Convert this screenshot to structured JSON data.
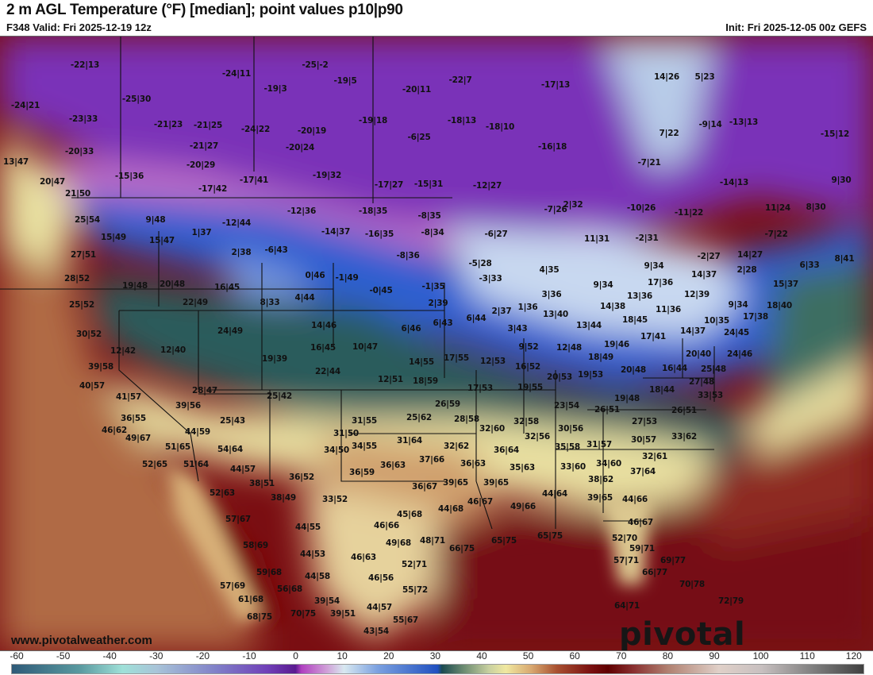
{
  "header": {
    "title": "2 m AGL Temperature (°F) [median]; point values p10|p90",
    "valid": "F348 Valid: Fri 2025-12-19 12z",
    "init": "Init: Fri 2025-12-05 00z GEFS"
  },
  "watermark": "www.pivotalweather.com",
  "logo": "pivotal weather",
  "colorbar": {
    "unit": "°F",
    "ticks": [
      "-60",
      "-50",
      "-40",
      "-30",
      "-20",
      "-10",
      "0",
      "10",
      "20",
      "30",
      "40",
      "50",
      "60",
      "70",
      "80",
      "90",
      "100",
      "110",
      "120"
    ]
  },
  "colors": {
    "cold_purple": "#7a2fb8",
    "blue": "#2f5fd0",
    "teal": "#2a5a5a",
    "pale_yellow": "#ece3a2",
    "tan": "#c08a5a",
    "dark_red": "#6e0a0a"
  },
  "points": [
    "-22|13",
    "-24|21",
    "-25|30",
    "-23|33",
    "-20|33",
    "13|47",
    "-15|36",
    "20|47",
    "21|50",
    "-24|11",
    "-19|3",
    "-21|23",
    "-21|25",
    "-24|22",
    "-21|27",
    "-20|29",
    "-17|42",
    "-17|41",
    "25|54",
    "9|48",
    "15|49",
    "15|47",
    "1|37",
    "-12|44",
    "-25|-2",
    "-19|5",
    "-20|11",
    "-22|7",
    "-17|13",
    "-20|19",
    "-20|24",
    "-19|18",
    "-6|25",
    "-18|13",
    "-18|10",
    "-16|18",
    "-19|32",
    "-17|27",
    "-15|31",
    "-12|27",
    "-12|36",
    "-18|35",
    "-8|35",
    "-14|37",
    "-16|35",
    "-8|34",
    "-6|27",
    "-7|26",
    "2|32",
    "14|26",
    "5|23",
    "-9|14",
    "-13|13",
    "-15|12",
    "7|22",
    "-7|21",
    "-14|13",
    "9|30",
    "-10|26",
    "-11|22",
    "11|24",
    "8|30",
    "-7|22",
    "-2|31",
    "11|31",
    "27|51",
    "28|52",
    "25|52",
    "19|48",
    "20|48",
    "22|49",
    "16|45",
    "2|38",
    "-6|43",
    "8|33",
    "30|52",
    "12|42",
    "12|40",
    "24|49",
    "19|39",
    "39|58",
    "40|57",
    "41|57",
    "28|47",
    "39|56",
    "25|42",
    "36|55",
    "25|43",
    "46|62",
    "44|59",
    "49|67",
    "0|46",
    "-1|49",
    "4|44",
    "14|46",
    "16|45",
    "22|44",
    "10|47",
    "-8|36",
    "-5|28",
    "-3|33",
    "4|35",
    "-1|35",
    "-0|45",
    "2|39",
    "3|36",
    "1|36",
    "2|37",
    "13|40",
    "6|46",
    "6|43",
    "6|44",
    "3|43",
    "9|52",
    "12|48",
    "14|55",
    "17|55",
    "12|53",
    "16|52",
    "20|53",
    "12|51",
    "18|59",
    "17|53",
    "19|55",
    "23|54",
    "26|59",
    "25|62",
    "28|58",
    "32|60",
    "32|58",
    "31|55",
    "31|50",
    "34|55",
    "34|50",
    "31|64",
    "32|62",
    "37|66",
    "36|63",
    "36|59",
    "36|63",
    "36|64",
    "35|63",
    "39|65",
    "39|65",
    "36|67",
    "33|52",
    "38|51",
    "38|49",
    "36|52",
    "54|64",
    "44|57",
    "51|65",
    "52|65",
    "51|64",
    "52|63",
    "57|67",
    "58|69",
    "59|68",
    "57|69",
    "61|68",
    "68|75",
    "56|68",
    "44|55",
    "44|53",
    "44|58",
    "39|54",
    "39|51",
    "70|75",
    "43|54",
    "44|57",
    "55|67",
    "55|72",
    "46|56",
    "52|71",
    "46|63",
    "49|68",
    "48|71",
    "46|66",
    "45|68",
    "44|68",
    "46|67",
    "66|75",
    "65|75",
    "65|75",
    "49|66",
    "44|64",
    "30|56",
    "32|56",
    "35|58",
    "31|57",
    "33|60",
    "34|60",
    "38|62",
    "39|65",
    "44|66",
    "27|53",
    "26|51",
    "19|48",
    "26|51",
    "30|57",
    "33|62",
    "32|61",
    "37|64",
    "46|67",
    "52|70",
    "59|71",
    "57|71",
    "66|77",
    "69|77",
    "70|78",
    "72|79",
    "64|71",
    "-2|27",
    "14|27",
    "2|28",
    "6|33",
    "8|41",
    "9|34",
    "14|37",
    "17|36",
    "12|39",
    "15|37",
    "9|34",
    "13|36",
    "9|34",
    "18|40",
    "14|38",
    "11|36",
    "18|45",
    "10|35",
    "17|38",
    "14|37",
    "17|41",
    "24|45",
    "19|46",
    "20|40",
    "24|46",
    "18|49",
    "16|44",
    "20|48",
    "25|48",
    "19|53",
    "27|48",
    "18|44",
    "33|53",
    "13|44"
  ]
}
